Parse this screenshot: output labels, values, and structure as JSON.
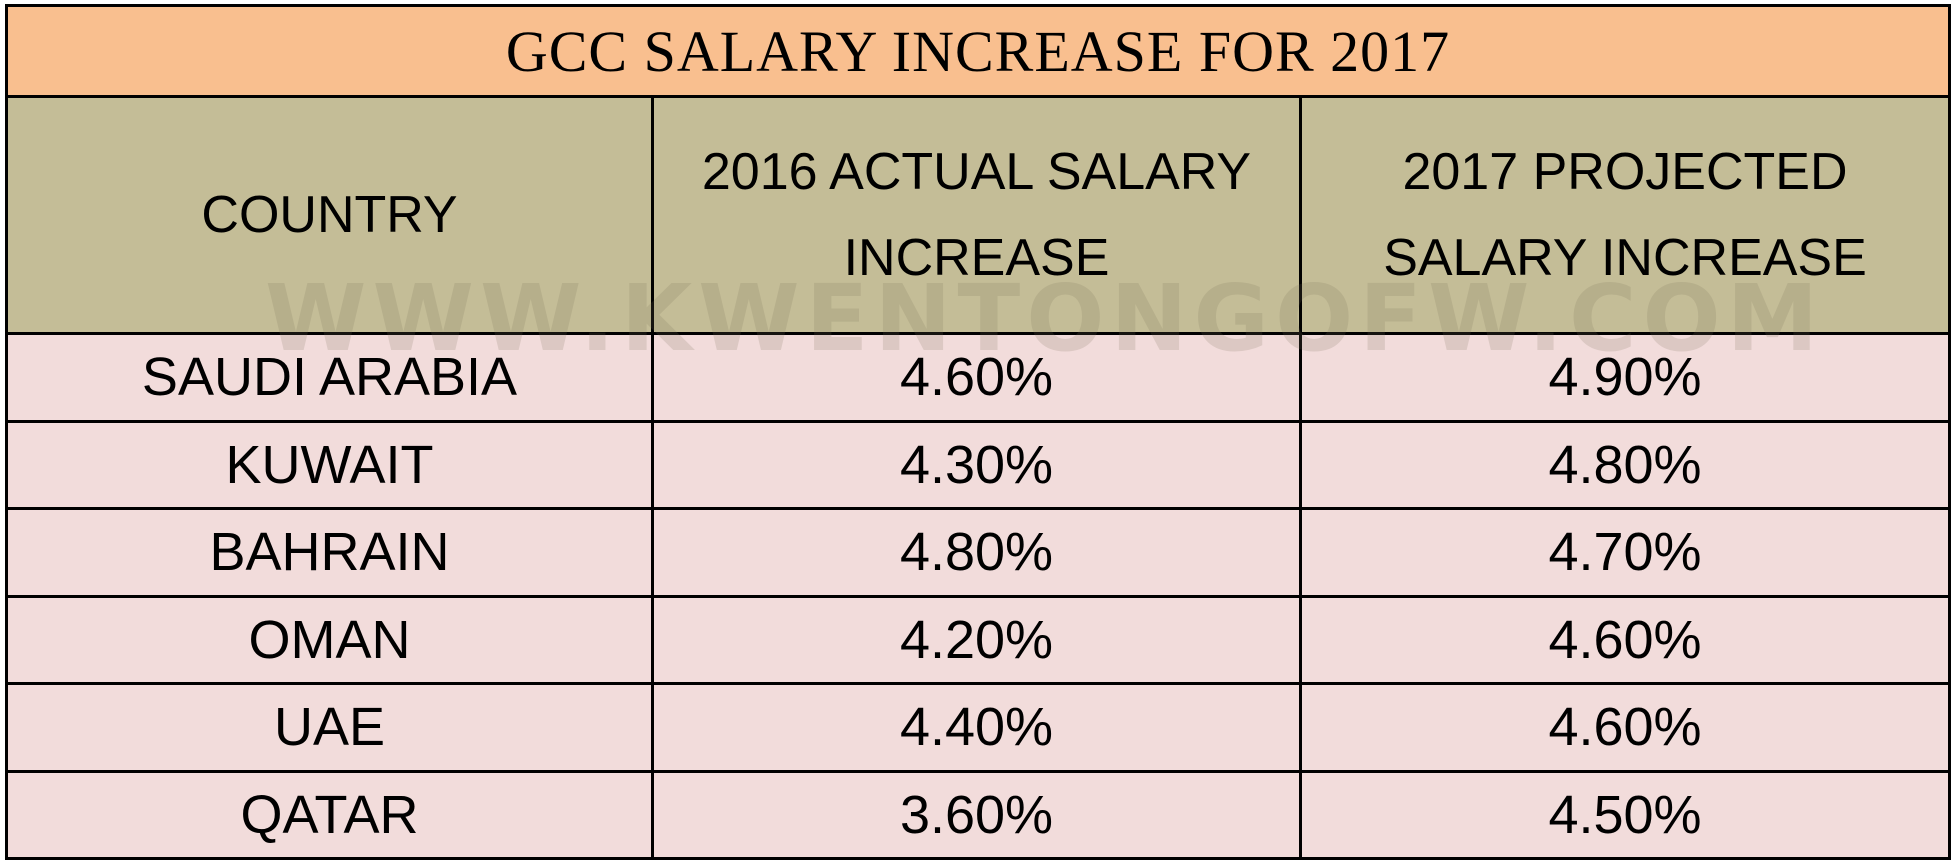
{
  "table": {
    "title": "GCC SALARY INCREASE FOR 2017",
    "headers": [
      "COUNTRY",
      "2016 ACTUAL SALARY INCREASE",
      "2017 PROJECTED SALARY INCREASE"
    ],
    "rows": [
      [
        "SAUDI ARABIA",
        "4.60%",
        "4.90%"
      ],
      [
        "KUWAIT",
        "4.30%",
        "4.80%"
      ],
      [
        "BAHRAIN",
        "4.80%",
        "4.70%"
      ],
      [
        "OMAN",
        "4.20%",
        "4.60%"
      ],
      [
        "UAE",
        "4.40%",
        "4.60%"
      ],
      [
        "QATAR",
        "3.60%",
        "4.50%"
      ]
    ],
    "colors": {
      "title_bg": "#f9bf8f",
      "header_bg": "#c4bd97",
      "row_bg": "#f2dcdb"
    }
  },
  "watermark": "WWW.KWENTONGOFW.COM",
  "chart_data": {
    "type": "table",
    "title": "GCC SALARY INCREASE FOR 2017",
    "columns": [
      "COUNTRY",
      "2016 ACTUAL SALARY INCREASE",
      "2017 PROJECTED SALARY INCREASE"
    ],
    "rows": [
      [
        "SAUDI ARABIA",
        "4.60%",
        "4.90%"
      ],
      [
        "KUWAIT",
        "4.30%",
        "4.80%"
      ],
      [
        "BAHRAIN",
        "4.80%",
        "4.70%"
      ],
      [
        "OMAN",
        "4.20%",
        "4.60%"
      ],
      [
        "UAE",
        "4.40%",
        "4.60%"
      ],
      [
        "QATAR",
        "3.60%",
        "4.50%"
      ]
    ]
  }
}
